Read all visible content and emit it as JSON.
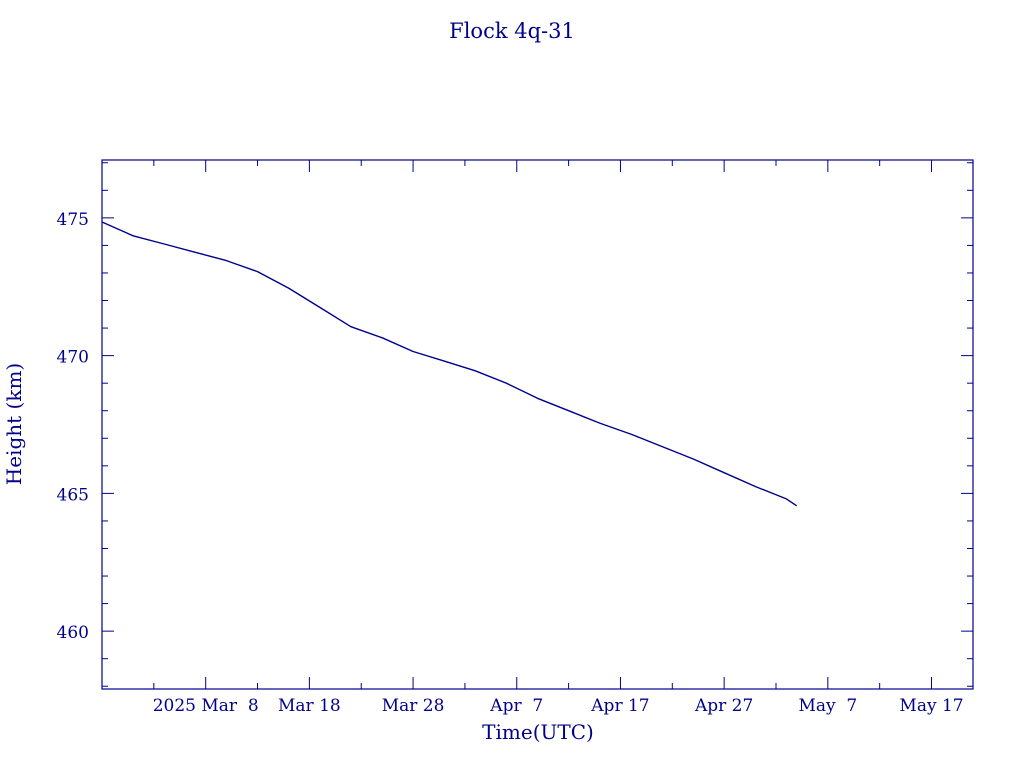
{
  "chart_data": {
    "type": "line",
    "title": "Flock 4q-31",
    "xlabel": "Time(UTC)",
    "ylabel": "Height (km)",
    "xlim": [
      "2025-02-26",
      "2025-05-21"
    ],
    "ylim": [
      457.9,
      477.1
    ],
    "x_tick_labels": [
      "2025 Mar  8",
      "Mar 18",
      "Mar 28",
      "Apr  7",
      "Apr 17",
      "Apr 27",
      "May  7",
      "May 17"
    ],
    "x_tick_dates": [
      "2025-03-08",
      "2025-03-18",
      "2025-03-28",
      "2025-04-07",
      "2025-04-17",
      "2025-04-27",
      "2025-05-07",
      "2025-05-17"
    ],
    "y_ticks": [
      460,
      465,
      470,
      475
    ],
    "y_tick_labels": [
      "460",
      "465",
      "470",
      "475"
    ],
    "grid": false,
    "color": "#00008b",
    "series": [
      {
        "x": [
          "2025-02-26",
          "2025-03-01",
          "2025-03-04",
          "2025-03-07",
          "2025-03-10",
          "2025-03-13",
          "2025-03-16",
          "2025-03-19",
          "2025-03-22",
          "2025-03-25",
          "2025-03-28",
          "2025-03-31",
          "2025-04-03",
          "2025-04-06",
          "2025-04-09",
          "2025-04-12",
          "2025-04-15",
          "2025-04-18",
          "2025-04-21",
          "2025-04-24",
          "2025-04-27",
          "2025-04-30",
          "2025-05-03",
          "2025-05-04"
        ],
        "y": [
          474.85,
          474.35,
          474.05,
          473.75,
          473.45,
          473.05,
          472.45,
          471.75,
          471.05,
          470.65,
          470.15,
          469.8,
          469.45,
          469.0,
          468.45,
          468.0,
          467.55,
          467.15,
          466.7,
          466.25,
          465.75,
          465.25,
          464.8,
          464.55
        ]
      }
    ]
  }
}
